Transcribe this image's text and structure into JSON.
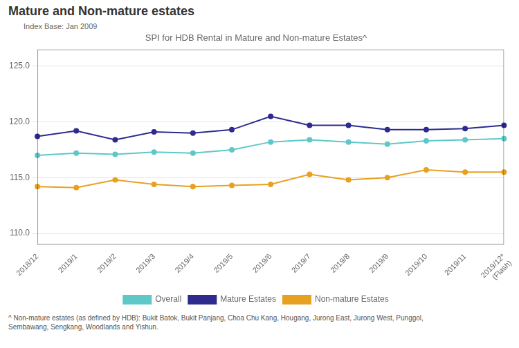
{
  "chart_data": {
    "type": "line",
    "title": "Mature and Non-mature estates",
    "subtitle": "SPI for HDB Rental in Mature and Non-mature Estates^",
    "annotations": [
      "Index Base: Jan 2009",
      "^ Non-mature estates (as defined by HDB): Bukit Batok, Bukit Panjang, Choa Chu Kang, Hougang, Jurong East, Jurong West, Punggol,\nSembawang, Sengkang, Woodlands and Yishun."
    ],
    "categories": [
      "2018/12",
      "2019/1",
      "2019/2",
      "2019/3",
      "2019/4",
      "2019/5",
      "2019/6",
      "2019/7",
      "2019/8",
      "2019/9",
      "2019/10",
      "2019/11",
      "2019/12*\n(Flash)"
    ],
    "series": [
      {
        "name": "Overall",
        "color": "#5EC8C8",
        "values": [
          117.0,
          117.2,
          117.1,
          117.3,
          117.2,
          117.5,
          118.2,
          118.4,
          118.2,
          118.0,
          118.3,
          118.4,
          118.5
        ]
      },
      {
        "name": "Mature Estates",
        "color": "#2E2A8E",
        "values": [
          118.7,
          119.2,
          118.4,
          119.1,
          119.0,
          119.3,
          120.5,
          119.7,
          119.7,
          119.3,
          119.3,
          119.4,
          119.7
        ]
      },
      {
        "name": "Non-mature Estates",
        "color": "#E8A020",
        "values": [
          114.2,
          114.1,
          114.8,
          114.4,
          114.2,
          114.3,
          114.4,
          115.3,
          114.8,
          115.0,
          115.7,
          115.5,
          115.5
        ]
      }
    ],
    "ylim": [
      109.0,
      126.5
    ],
    "yticks": [
      {
        "value": 110,
        "label": "110.0"
      },
      {
        "value": 115,
        "label": "115.0"
      },
      {
        "value": 120,
        "label": "120.0"
      },
      {
        "value": 125,
        "label": "125.0"
      }
    ],
    "grid": true,
    "legend": "bottom",
    "marker": "circle"
  }
}
